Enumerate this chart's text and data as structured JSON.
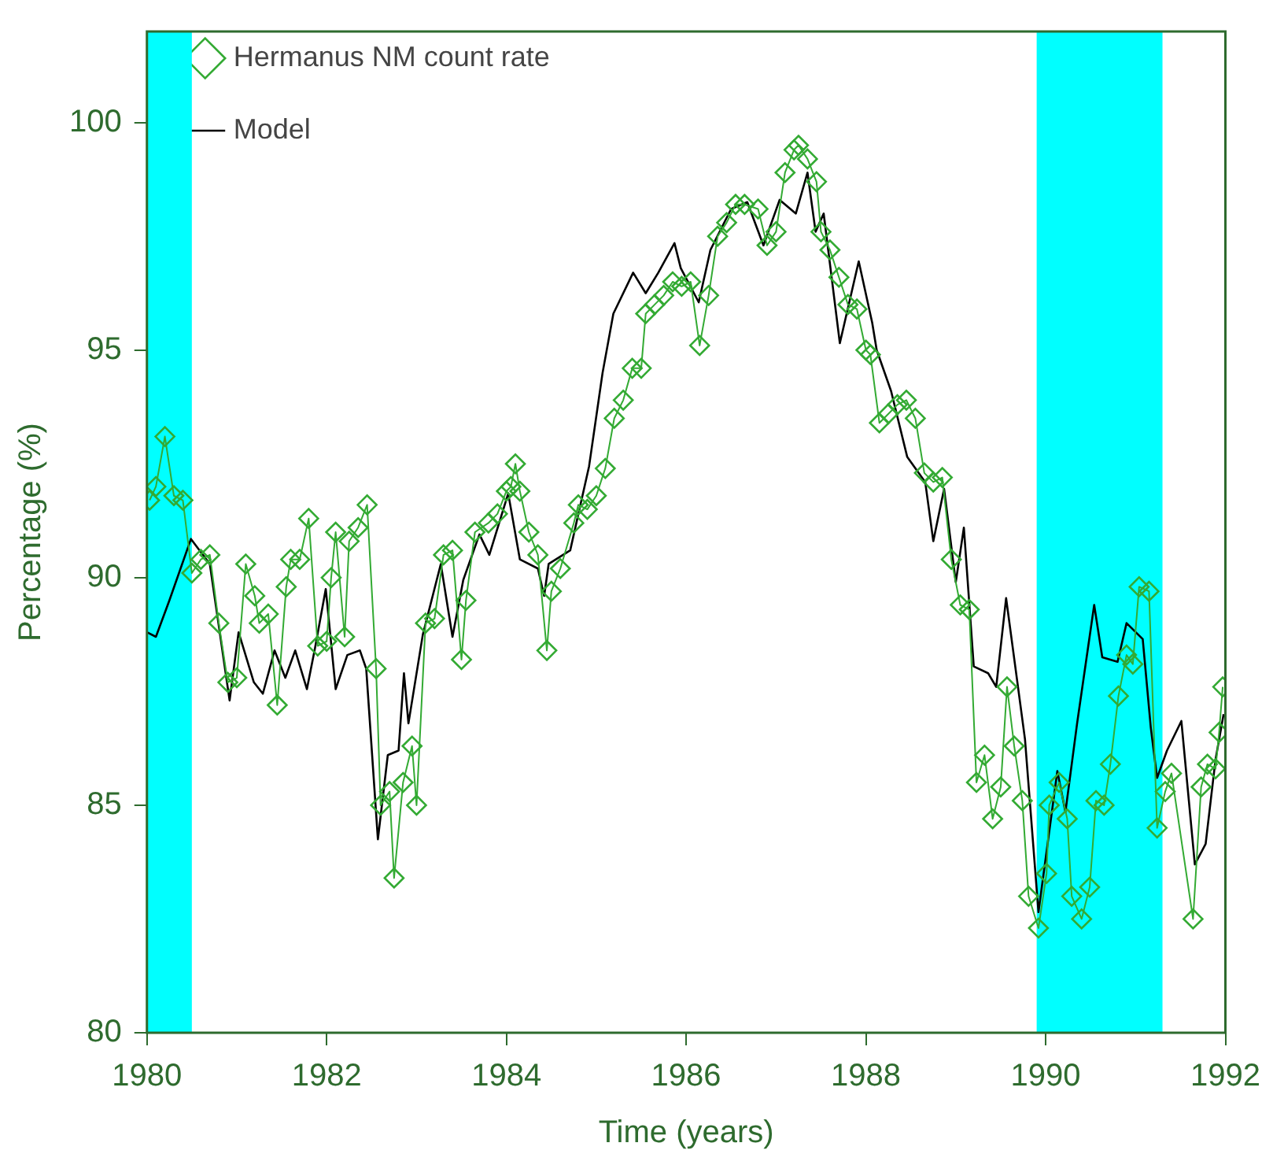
{
  "chart_data": {
    "type": "line",
    "xlabel": "Time (years)",
    "ylabel": "Percentage (%)",
    "xlim": [
      1980,
      1992
    ],
    "xticks": [
      1980,
      1982,
      1984,
      1986,
      1988,
      1990,
      1992
    ],
    "ylim": [
      80,
      102
    ],
    "yticks": [
      80,
      85,
      90,
      95,
      100
    ],
    "grid": false,
    "legend": "top left",
    "bands": [
      {
        "axis": "x",
        "from": 1980,
        "to": 1980.5,
        "color": "#00ffff"
      },
      {
        "axis": "x",
        "from": 1989.9,
        "to": 1991.3,
        "color": "#00ffff"
      }
    ],
    "series": [
      {
        "name": "Hermanus NM count rate",
        "type": "line",
        "marker": "diamond",
        "color": "#33aa33",
        "x": [
          1980.03,
          1980.1,
          1980.2,
          1980.3,
          1980.4,
          1980.5,
          1980.6,
          1980.7,
          1980.8,
          1980.9,
          1981.0,
          1981.1,
          1981.2,
          1981.25,
          1981.35,
          1981.45,
          1981.55,
          1981.6,
          1981.7,
          1981.8,
          1981.9,
          1982.0,
          1982.05,
          1982.1,
          1982.2,
          1982.25,
          1982.35,
          1982.45,
          1982.55,
          1982.6,
          1982.7,
          1982.75,
          1982.85,
          1982.95,
          1983.0,
          1983.1,
          1983.2,
          1983.3,
          1983.4,
          1983.5,
          1983.55,
          1983.65,
          1983.8,
          1983.9,
          1984.0,
          1984.05,
          1984.1,
          1984.15,
          1984.25,
          1984.35,
          1984.45,
          1984.5,
          1984.6,
          1984.75,
          1984.8,
          1984.9,
          1985.0,
          1985.1,
          1985.2,
          1985.3,
          1985.4,
          1985.5,
          1985.55,
          1985.65,
          1985.75,
          1985.85,
          1985.95,
          1986.05,
          1986.15,
          1986.25,
          1986.35,
          1986.45,
          1986.55,
          1986.65,
          1986.8,
          1986.9,
          1987.0,
          1987.1,
          1987.2,
          1987.25,
          1987.35,
          1987.45,
          1987.5,
          1987.6,
          1987.7,
          1987.8,
          1987.9,
          1988.0,
          1988.05,
          1988.15,
          1988.25,
          1988.35,
          1988.45,
          1988.55,
          1988.65,
          1988.75,
          1988.85,
          1988.95,
          1989.05,
          1989.15,
          1989.23,
          1989.32,
          1989.41,
          1989.5,
          1989.57,
          1989.65,
          1989.74,
          1989.81,
          1989.92,
          1990.01,
          1990.04,
          1990.15,
          1990.24,
          1990.29,
          1990.4,
          1990.49,
          1990.56,
          1990.65,
          1990.72,
          1990.81,
          1990.9,
          1990.97,
          1991.04,
          1991.15,
          1991.24,
          1991.33,
          1991.4,
          1991.64,
          1991.73,
          1991.8,
          1991.89,
          1991.93,
          1991.97
        ],
        "values": [
          91.7,
          92.0,
          93.1,
          91.8,
          91.7,
          90.1,
          90.4,
          90.5,
          89.0,
          87.7,
          87.8,
          90.3,
          89.6,
          89.0,
          89.2,
          87.2,
          89.8,
          90.4,
          90.4,
          91.3,
          88.5,
          88.6,
          90.0,
          91.0,
          88.7,
          90.8,
          91.1,
          91.6,
          88.0,
          85.0,
          85.3,
          83.4,
          85.5,
          86.3,
          85.0,
          89.0,
          89.1,
          90.5,
          90.6,
          88.2,
          89.5,
          91.0,
          91.2,
          91.4,
          91.9,
          92.0,
          92.5,
          91.9,
          91.0,
          90.5,
          88.4,
          89.7,
          90.2,
          91.2,
          91.6,
          91.5,
          91.8,
          92.4,
          93.5,
          93.9,
          94.6,
          94.6,
          95.8,
          96.0,
          96.2,
          96.5,
          96.4,
          96.5,
          95.1,
          96.2,
          97.5,
          97.8,
          98.2,
          98.2,
          98.1,
          97.3,
          97.6,
          98.9,
          99.4,
          99.5,
          99.2,
          98.7,
          97.6,
          97.2,
          96.6,
          96.0,
          95.9,
          95.0,
          94.9,
          93.4,
          93.6,
          93.8,
          93.9,
          93.5,
          92.3,
          92.1,
          92.2,
          90.4,
          89.4,
          89.3,
          85.5,
          86.1,
          84.7,
          85.4,
          87.6,
          86.3,
          85.1,
          83.0,
          82.3,
          83.5,
          85.0,
          85.5,
          84.7,
          83.0,
          82.5,
          83.2,
          85.1,
          85.0,
          85.9,
          87.4,
          88.3,
          88.1,
          89.8,
          89.7,
          84.5,
          85.3,
          85.7,
          82.5,
          85.4,
          85.9,
          85.8,
          86.6,
          87.6
        ]
      },
      {
        "name": "Model",
        "type": "line",
        "marker": "none",
        "color": "#000000",
        "x": [
          1980.0,
          1980.1,
          1980.25,
          1980.49,
          1980.7,
          1980.92,
          1981.02,
          1981.19,
          1981.29,
          1981.42,
          1981.54,
          1981.65,
          1981.78,
          1981.87,
          1981.99,
          1982.1,
          1982.23,
          1982.37,
          1982.44,
          1982.57,
          1982.68,
          1982.8,
          1982.86,
          1982.91,
          1983.07,
          1983.27,
          1983.4,
          1983.52,
          1983.7,
          1983.81,
          1984.02,
          1984.15,
          1984.35,
          1984.42,
          1984.47,
          1984.71,
          1984.92,
          1985.07,
          1985.19,
          1985.41,
          1985.55,
          1985.69,
          1985.87,
          1985.94,
          1986.14,
          1986.27,
          1986.5,
          1986.68,
          1986.86,
          1987.04,
          1987.22,
          1987.35,
          1987.44,
          1987.53,
          1987.71,
          1987.92,
          1988.07,
          1988.12,
          1988.28,
          1988.46,
          1988.66,
          1988.75,
          1988.87,
          1989.0,
          1989.09,
          1989.2,
          1989.36,
          1989.45,
          1989.56,
          1989.77,
          1989.92,
          1990.13,
          1990.22,
          1990.35,
          1990.54,
          1990.63,
          1990.8,
          1990.9,
          1991.08,
          1991.17,
          1991.24,
          1991.35,
          1991.51,
          1991.66,
          1991.78,
          1991.89,
          1991.98
        ],
        "values": [
          88.8,
          88.7,
          89.5,
          90.85,
          90.3,
          87.3,
          88.8,
          87.7,
          87.45,
          88.4,
          87.8,
          88.4,
          87.55,
          88.45,
          89.75,
          87.55,
          88.3,
          88.4,
          88.0,
          84.25,
          86.1,
          86.2,
          87.9,
          86.8,
          88.75,
          90.3,
          88.7,
          89.95,
          90.95,
          90.5,
          91.85,
          90.4,
          90.2,
          89.6,
          90.3,
          90.6,
          92.45,
          94.5,
          95.8,
          96.7,
          96.25,
          96.7,
          97.35,
          96.8,
          96.05,
          97.2,
          98.1,
          98.25,
          97.3,
          98.3,
          98.0,
          98.9,
          97.6,
          98.0,
          95.15,
          96.95,
          95.6,
          95.0,
          94.1,
          92.65,
          92.1,
          90.8,
          91.95,
          89.9,
          91.1,
          88.05,
          87.9,
          87.6,
          89.55,
          86.45,
          82.65,
          85.75,
          84.85,
          86.8,
          89.4,
          88.25,
          88.15,
          89.0,
          88.65,
          86.7,
          85.6,
          86.2,
          86.85,
          83.7,
          84.15,
          86.0,
          87.0
        ]
      }
    ]
  }
}
